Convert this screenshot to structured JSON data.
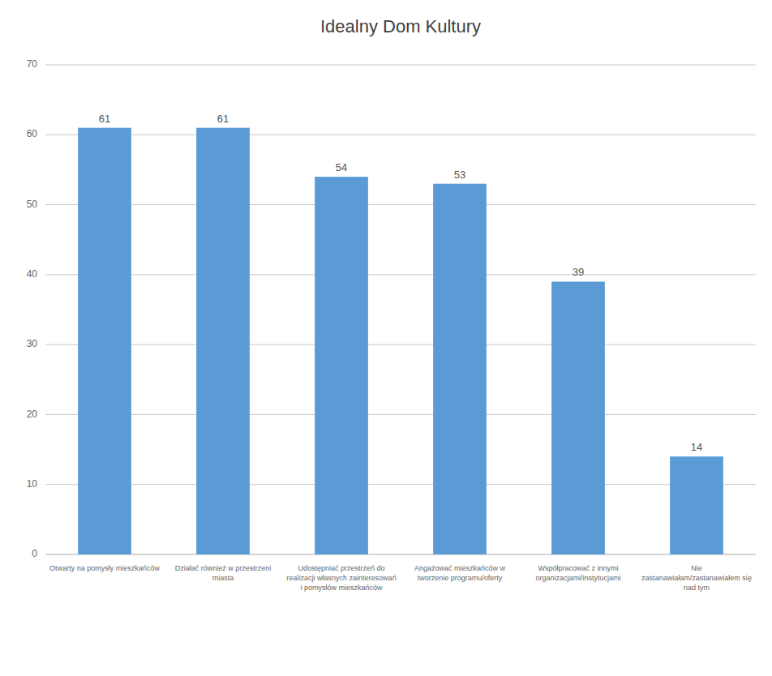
{
  "chart_data": {
    "type": "bar",
    "title": "Idealny Dom Kultury",
    "categories": [
      "Otwarty na pomysły mieszkańców",
      "Działać również w przestrzeni\nmiasta",
      "Udostępniać przestrzeń do\nrealizacji własnych zainteresowań\ni pomysłów mieszkańców",
      "Angażować mieszkańców w\ntworzenie programu/oferty",
      "Współpracować z innymi\norganizacjami/instytucjami",
      "Nie\nzastanawiałam/zastanawiałem się\nnad tym"
    ],
    "values": [
      61,
      61,
      54,
      53,
      39,
      14
    ],
    "color": "#5b9bd5",
    "ylim": [
      0,
      70
    ],
    "yticks": [
      0,
      10,
      20,
      30,
      40,
      50,
      60,
      70
    ],
    "grid": true,
    "data_labels": true
  }
}
